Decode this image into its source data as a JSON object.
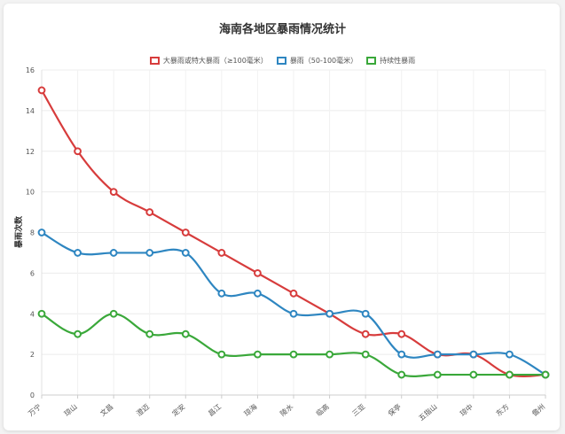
{
  "chart_data": {
    "type": "line",
    "title": "海南各地区暴雨情况统计",
    "ylabel": "暴雨次数",
    "xlabel": "",
    "ylim": [
      0,
      16
    ],
    "yticks": [
      0,
      2,
      4,
      6,
      8,
      10,
      12,
      14,
      16
    ],
    "grid": true,
    "legend_position": "top",
    "categories": [
      "万宁",
      "琼山",
      "文昌",
      "澄迈",
      "定安",
      "昌江",
      "琼海",
      "陵水",
      "临高",
      "三亚",
      "保亭",
      "五指山",
      "琼中",
      "东方",
      "儋州"
    ],
    "series": [
      {
        "name": "大暴雨或特大暴雨（≥100毫米）",
        "color": "#d73c3c",
        "values": [
          15,
          12,
          10,
          9,
          8,
          7,
          6,
          5,
          4,
          3,
          3,
          2,
          2,
          1,
          1
        ]
      },
      {
        "name": "暴雨（50-100毫米）",
        "color": "#2e86c1",
        "values": [
          8,
          7,
          7,
          7,
          7,
          5,
          5,
          4,
          4,
          4,
          2,
          2,
          2,
          2,
          1
        ]
      },
      {
        "name": "持续性暴雨",
        "color": "#3aa83a",
        "values": [
          4,
          3,
          4,
          3,
          3,
          2,
          2,
          2,
          2,
          2,
          1,
          1,
          1,
          1,
          1
        ]
      }
    ]
  }
}
